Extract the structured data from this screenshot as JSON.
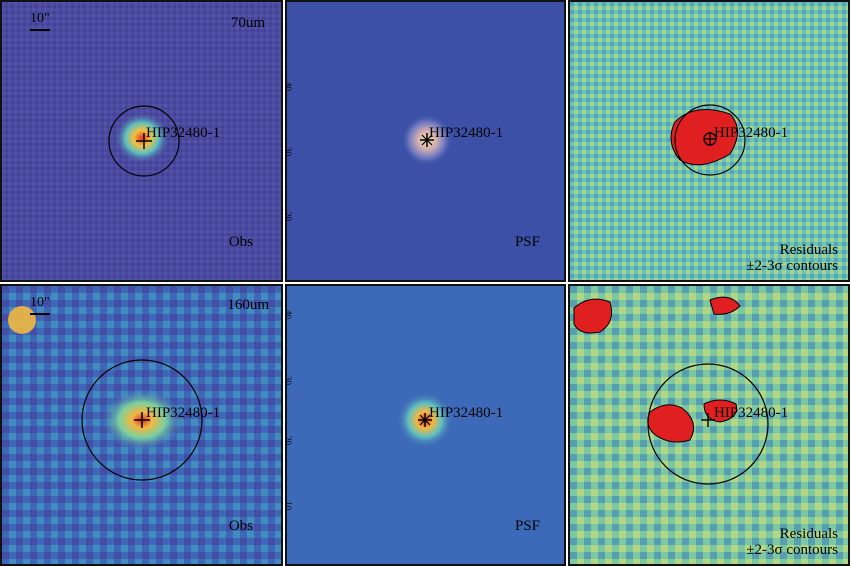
{
  "figure": {
    "rows": [
      {
        "band": "70um",
        "scale_bar": "10\"",
        "source": "HIP32480-1",
        "panels": [
          {
            "label": "Obs"
          },
          {
            "label": "PSF"
          },
          {
            "label": "Residuals",
            "sublabel": "±2-3σ contours"
          }
        ]
      },
      {
        "band": "160um",
        "scale_bar": "10\"",
        "source": "HIP32480-1",
        "panels": [
          {
            "label": "Obs"
          },
          {
            "label": "PSF"
          },
          {
            "label": "Residuals",
            "sublabel": "±2-3σ contours"
          }
        ]
      }
    ],
    "psf_axis_ticks_row1": [
      "40",
      "30",
      "20"
    ],
    "psf_axis_ticks_row2": [
      "40",
      "30",
      "20",
      "10"
    ],
    "colors": {
      "background_obs": "#4a4aa0",
      "psf_bg": "#3a52a8",
      "residual_bg": "#6cc0b0",
      "hot": "#e02020",
      "warm": "#f5c842"
    }
  }
}
